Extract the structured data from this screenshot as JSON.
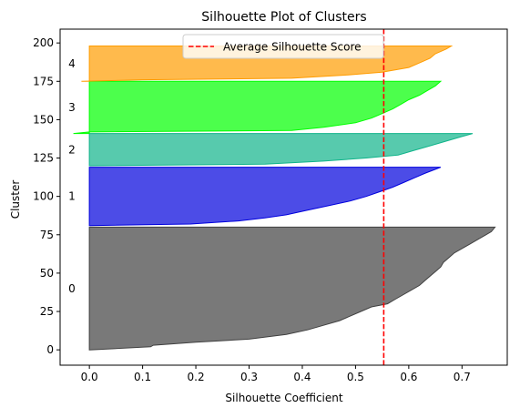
{
  "chart_data": {
    "type": "area",
    "title": "Silhouette Plot of Clusters",
    "xlabel": "Silhouette Coefficient",
    "ylabel": "Cluster",
    "xlim": [
      -0.055,
      0.785
    ],
    "ylim": [
      -10,
      209
    ],
    "xticks": [
      0.0,
      0.1,
      0.2,
      0.3,
      0.4,
      0.5,
      0.6,
      0.7
    ],
    "xtick_labels": [
      "0.0",
      "0.1",
      "0.2",
      "0.3",
      "0.4",
      "0.5",
      "0.6",
      "0.7"
    ],
    "yticks": [
      0,
      25,
      50,
      75,
      100,
      125,
      150,
      175,
      200
    ],
    "ytick_labels": [
      "0",
      "25",
      "50",
      "75",
      "100",
      "125",
      "150",
      "175",
      "200"
    ],
    "grid": false,
    "legend": {
      "position": "top-center",
      "entries": [
        "Average Silhouette Score"
      ]
    },
    "average_silhouette_score": 0.553,
    "reference_line": {
      "label": "Average Silhouette Score",
      "x": 0.553,
      "color": "#ff0000",
      "style": "dashed"
    },
    "series": [
      {
        "cluster_label": "0",
        "color": "#404040",
        "y_start": 0,
        "y_end": 80,
        "profile": [
          [
            0,
            0.0
          ],
          [
            2,
            0.115
          ],
          [
            3,
            0.12
          ],
          [
            5,
            0.2
          ],
          [
            7,
            0.3
          ],
          [
            10,
            0.37
          ],
          [
            13,
            0.41
          ],
          [
            16,
            0.44
          ],
          [
            19,
            0.47
          ],
          [
            22,
            0.49
          ],
          [
            25,
            0.51
          ],
          [
            28,
            0.53
          ],
          [
            30,
            0.56
          ],
          [
            33,
            0.575
          ],
          [
            36,
            0.59
          ],
          [
            39,
            0.605
          ],
          [
            42,
            0.62
          ],
          [
            45,
            0.63
          ],
          [
            48,
            0.64
          ],
          [
            51,
            0.65
          ],
          [
            54,
            0.66
          ],
          [
            57,
            0.665
          ],
          [
            60,
            0.675
          ],
          [
            63,
            0.685
          ],
          [
            66,
            0.7
          ],
          [
            69,
            0.715
          ],
          [
            72,
            0.73
          ],
          [
            75,
            0.745
          ],
          [
            77,
            0.755
          ],
          [
            80,
            0.762
          ]
        ]
      },
      {
        "cluster_label": "1",
        "color": "#0000dd",
        "y_start": 81,
        "y_end": 119,
        "profile": [
          [
            81,
            0.0
          ],
          [
            82,
            0.19
          ],
          [
            84,
            0.28
          ],
          [
            86,
            0.33
          ],
          [
            88,
            0.37
          ],
          [
            91,
            0.41
          ],
          [
            94,
            0.45
          ],
          [
            97,
            0.49
          ],
          [
            100,
            0.52
          ],
          [
            103,
            0.545
          ],
          [
            106,
            0.57
          ],
          [
            109,
            0.59
          ],
          [
            112,
            0.61
          ],
          [
            115,
            0.63
          ],
          [
            117,
            0.645
          ],
          [
            119,
            0.66
          ]
        ]
      },
      {
        "cluster_label": "2",
        "color": "#10b48a",
        "y_start": 120,
        "y_end": 141,
        "profile": [
          [
            120,
            0.0
          ],
          [
            121,
            0.33
          ],
          [
            123,
            0.44
          ],
          [
            125,
            0.52
          ],
          [
            127,
            0.58
          ],
          [
            130,
            0.61
          ],
          [
            133,
            0.64
          ],
          [
            136,
            0.67
          ],
          [
            139,
            0.7
          ],
          [
            141,
            0.72
          ]
        ]
      },
      {
        "cluster_label": "3",
        "color": "#00ff00",
        "y_start": 141,
        "y_end": 175,
        "profile": [
          [
            141,
            -0.03
          ],
          [
            142,
            0.0
          ],
          [
            143,
            0.38
          ],
          [
            145,
            0.44
          ],
          [
            148,
            0.5
          ],
          [
            151,
            0.53
          ],
          [
            154,
            0.55
          ],
          [
            157,
            0.57
          ],
          [
            160,
            0.585
          ],
          [
            163,
            0.6
          ],
          [
            166,
            0.62
          ],
          [
            169,
            0.635
          ],
          [
            172,
            0.65
          ],
          [
            175,
            0.66
          ]
        ]
      },
      {
        "cluster_label": "4",
        "color": "#ff9c00",
        "y_start": 175,
        "y_end": 198,
        "profile": [
          [
            175,
            -0.015
          ],
          [
            176,
            0.1
          ],
          [
            177,
            0.38
          ],
          [
            179,
            0.48
          ],
          [
            181,
            0.55
          ],
          [
            184,
            0.6
          ],
          [
            187,
            0.62
          ],
          [
            190,
            0.64
          ],
          [
            193,
            0.65
          ],
          [
            196,
            0.67
          ],
          [
            198,
            0.68
          ]
        ]
      }
    ]
  }
}
